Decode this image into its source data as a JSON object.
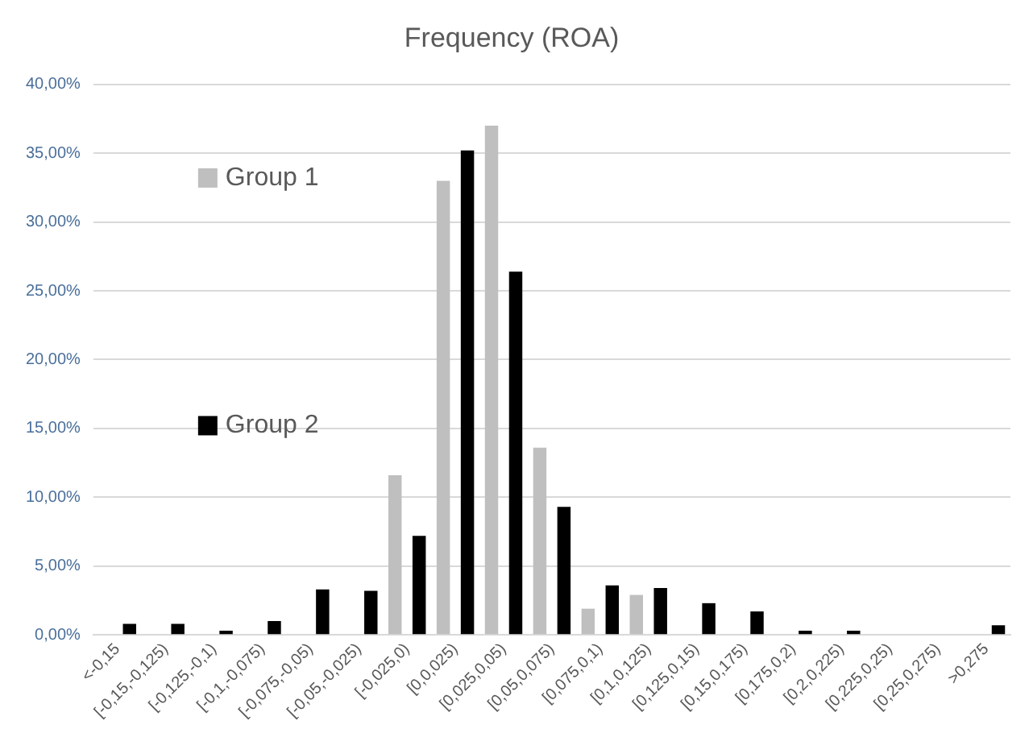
{
  "chart_data": {
    "type": "bar",
    "title": "Frequency (ROA)",
    "categories": [
      "<-0,15",
      "[-0,15,-0,125)",
      "[-0,125,-0,1)",
      "[-0,1,-0,075)",
      "[-0,075,-0,05)",
      "[-0,05,-0,025)",
      "[-0,025,0)",
      "[0,0,025)",
      "[0,025,0,05)",
      "[0,05,0,075)",
      "[0,075,0,1)",
      "[0,1,0,125)",
      "[0,125,0,15)",
      "[0,15,0,175)",
      "[0,175,0,2)",
      "[0,2,0,225)",
      "[0,225,0,25)",
      "[0,25,0,275)",
      ">0,275"
    ],
    "series": [
      {
        "name": "Group 1",
        "color": "#bfbfbf",
        "values": [
          0,
          0,
          0,
          0,
          0,
          0,
          11.6,
          33,
          37,
          13.6,
          1.9,
          2.9,
          0,
          0,
          0,
          0,
          0,
          0,
          0
        ]
      },
      {
        "name": "Group 2",
        "color": "#000000",
        "values": [
          0.8,
          0.8,
          0.3,
          1.0,
          3.3,
          3.2,
          7.2,
          35.2,
          26.4,
          9.3,
          3.6,
          3.4,
          2.3,
          1.7,
          0.3,
          0.3,
          0,
          0,
          0.7
        ]
      }
    ],
    "ylim": [
      0,
      40
    ],
    "yticks": [
      {
        "value": 0,
        "label": "0,00%"
      },
      {
        "value": 5,
        "label": "5,00%"
      },
      {
        "value": 10,
        "label": "10,00%"
      },
      {
        "value": 15,
        "label": "15,00%"
      },
      {
        "value": 20,
        "label": "20,00%"
      },
      {
        "value": 25,
        "label": "25,00%"
      },
      {
        "value": 30,
        "label": "30,00%"
      },
      {
        "value": 35,
        "label": "35,00%"
      },
      {
        "value": 40,
        "label": "40,00%"
      }
    ],
    "grid": "y",
    "legend": "top left"
  }
}
